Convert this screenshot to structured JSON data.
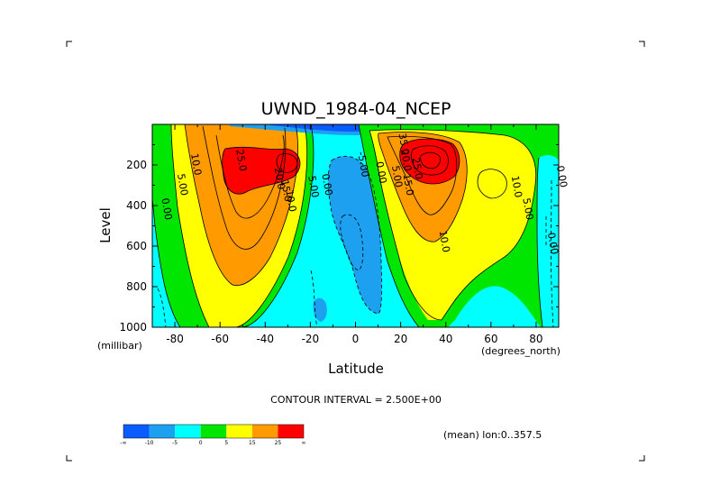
{
  "chart_data": {
    "type": "contour",
    "title": "UWND_1984-04_NCEP",
    "xlabel": "Latitude",
    "ylabel": "Level",
    "x_units": "(degrees_north)",
    "y_units": "(millibar)",
    "xlim": [
      -90,
      90
    ],
    "ylim": [
      1000,
      0
    ],
    "y_inverted": true,
    "x_ticks": [
      -80,
      -60,
      -40,
      -20,
      0,
      20,
      40,
      60,
      80
    ],
    "x_tick_labels": [
      "-80",
      "-60",
      "-40",
      "-20",
      "0",
      "20",
      "40",
      "60",
      "80"
    ],
    "y_ticks": [
      200,
      400,
      600,
      800,
      1000
    ],
    "y_tick_labels": [
      "200",
      "400",
      "600",
      "800",
      "1000"
    ],
    "contour_interval_text": "CONTOUR INTERVAL = 2.500E+00",
    "mean_text": "(mean) lon:0..357.5",
    "colorbar": {
      "colors": [
        "#0a5cff",
        "#1ea0f0",
        "#00ffff",
        "#00e600",
        "#ffff00",
        "#ff9a00",
        "#ff0000"
      ],
      "tick_labels": [
        "-∞",
        "-10",
        "-5",
        "0",
        "5",
        "15",
        "25",
        "∞"
      ]
    },
    "jets": [
      {
        "hemisphere": "south",
        "lat": -45,
        "level": 220,
        "max_value": 27
      },
      {
        "hemisphere": "north",
        "lat": 30,
        "level": 200,
        "max_value": 37
      }
    ],
    "contour_labels": [
      {
        "text": "10.0",
        "lat": -72,
        "level": 200
      },
      {
        "text": "5.00",
        "lat": -78,
        "level": 300
      },
      {
        "text": "0.00",
        "lat": -85,
        "level": 420
      },
      {
        "text": "25.0",
        "lat": -52,
        "level": 180
      },
      {
        "text": "20.0",
        "lat": -35,
        "level": 270
      },
      {
        "text": "15.0",
        "lat": -32,
        "level": 330
      },
      {
        "text": "10.0",
        "lat": -30,
        "level": 380
      },
      {
        "text": "5.00",
        "lat": -20,
        "level": 310
      },
      {
        "text": "0.00",
        "lat": -14,
        "level": 300
      },
      {
        "text": "-5.00",
        "lat": 2,
        "level": 200
      },
      {
        "text": "0.00",
        "lat": 10,
        "level": 240
      },
      {
        "text": "5.00",
        "lat": 17,
        "level": 260
      },
      {
        "text": "35.0",
        "lat": 20,
        "level": 100
      },
      {
        "text": "20.0",
        "lat": 21,
        "level": 180
      },
      {
        "text": "15.0",
        "lat": 22,
        "level": 300
      },
      {
        "text": "25.0",
        "lat": 26,
        "level": 220
      },
      {
        "text": "10.0",
        "lat": 38,
        "level": 580
      },
      {
        "text": "10.0",
        "lat": 70,
        "level": 310
      },
      {
        "text": "5.00",
        "lat": 75,
        "level": 420
      },
      {
        "text": "0.00",
        "lat": 90,
        "level": 260
      },
      {
        "text": "0.00",
        "lat": 86,
        "level": 590
      }
    ]
  }
}
